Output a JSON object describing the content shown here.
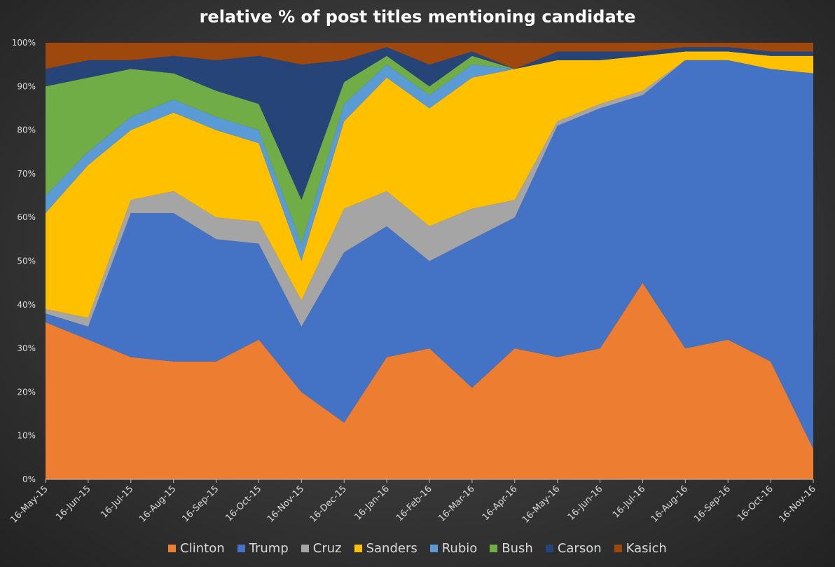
{
  "chart_data": {
    "type": "area",
    "stacked": true,
    "normalized": true,
    "title": "relative % of post titles mentioning candidate",
    "y_ticks": [
      "0%",
      "10%",
      "20%",
      "30%",
      "40%",
      "50%",
      "60%",
      "70%",
      "80%",
      "90%",
      "100%"
    ],
    "ylim": [
      0,
      100
    ],
    "x_ticks": [
      "16-May-15",
      "16-Jun-15",
      "16-Jul-15",
      "16-Aug-15",
      "16-Sep-15",
      "16-Oct-15",
      "16-Nov-15",
      "16-Dec-15",
      "16-Jan-16",
      "16-Feb-16",
      "16-Mar-16",
      "16-Apr-16",
      "16-May-16",
      "16-Jun-16",
      "16-Jul-16",
      "16-Aug-16",
      "16-Sep-16",
      "16-Oct-16",
      "16-Nov-16"
    ],
    "legend_position": "bottom",
    "grid": false,
    "x": [
      "16-May-15",
      "16-Jun-15",
      "16-Jul-15",
      "16-Aug-15",
      "16-Sep-15",
      "16-Oct-15",
      "16-Nov-15",
      "16-Dec-15",
      "16-Jan-16",
      "16-Feb-16",
      "16-Mar-16",
      "16-Apr-16",
      "16-May-16",
      "16-Jun-16",
      "16-Jul-16",
      "16-Aug-16",
      "16-Sep-16",
      "16-Oct-16",
      "16-Nov-16"
    ],
    "series": [
      {
        "name": "Clinton",
        "color": "#ED7D31",
        "values": [
          36,
          32,
          28,
          27,
          27,
          32,
          20,
          13,
          28,
          30,
          21,
          30,
          28,
          30,
          45,
          30,
          32,
          27,
          7
        ]
      },
      {
        "name": "Trump",
        "color": "#4472C4",
        "values": [
          2,
          3,
          33,
          34,
          28,
          22,
          15,
          39,
          30,
          20,
          34,
          30,
          53,
          55,
          43,
          66,
          64,
          67,
          86
        ]
      },
      {
        "name": "Cruz",
        "color": "#A5A5A5",
        "values": [
          1,
          2,
          3,
          5,
          5,
          5,
          6,
          10,
          8,
          8,
          7,
          4,
          1,
          1,
          1,
          0,
          0,
          0,
          0
        ]
      },
      {
        "name": "Sanders",
        "color": "#FFC000",
        "values": [
          22,
          35,
          16,
          18,
          20,
          18,
          9,
          20,
          26,
          27,
          30,
          30,
          14,
          10,
          8,
          2,
          2,
          3,
          4
        ]
      },
      {
        "name": "Rubio",
        "color": "#5B9BD5",
        "values": [
          4,
          3,
          3,
          3,
          3,
          3,
          4,
          4,
          3,
          3,
          3,
          0,
          0,
          0,
          0,
          0,
          0,
          0,
          0
        ]
      },
      {
        "name": "Bush",
        "color": "#70AD47",
        "values": [
          25,
          17,
          11,
          6,
          6,
          6,
          10,
          5,
          2,
          2,
          2,
          0,
          0,
          0,
          0,
          0,
          0,
          0,
          0
        ]
      },
      {
        "name": "Carson",
        "color": "#264478",
        "values": [
          4,
          4,
          2,
          4,
          7,
          11,
          31,
          5,
          2,
          5,
          1,
          0,
          2,
          2,
          1,
          1,
          1,
          1,
          1
        ]
      },
      {
        "name": "Kasich",
        "color": "#9E480E",
        "values": [
          6,
          4,
          4,
          3,
          4,
          3,
          5,
          4,
          1,
          5,
          2,
          6,
          2,
          2,
          2,
          1,
          1,
          2,
          2
        ]
      }
    ]
  }
}
